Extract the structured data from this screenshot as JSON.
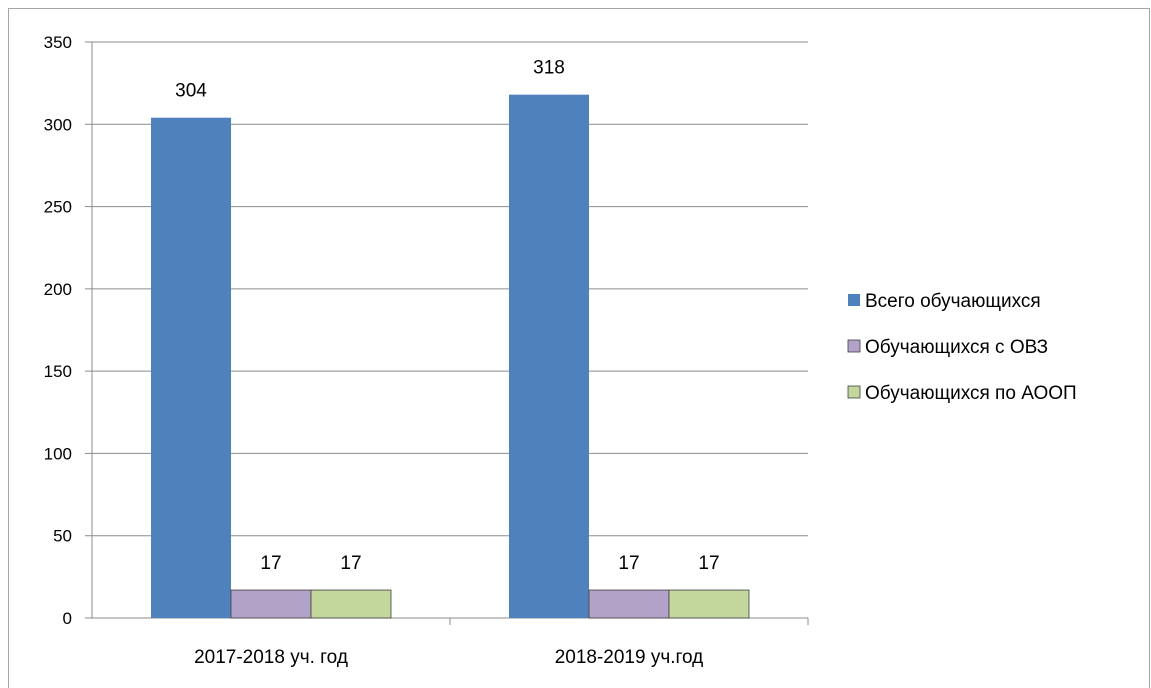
{
  "chart_data": {
    "type": "bar",
    "title": "",
    "xlabel": "",
    "ylabel": "",
    "categories": [
      "2017-2018 уч. год",
      "2018-2019 уч.год"
    ],
    "series": [
      {
        "name": "Всего обучающихся",
        "values": [
          304,
          318
        ],
        "color": "#4f81bd"
      },
      {
        "name": "Обучающихся с ОВЗ",
        "values": [
          17,
          17
        ],
        "color": "#b3a2c7"
      },
      {
        "name": "Обучающихся по АООП",
        "values": [
          17,
          17
        ],
        "color": "#c3d69b"
      }
    ],
    "ylim": [
      0,
      350
    ],
    "yticks": [
      0,
      50,
      100,
      150,
      200,
      250,
      300,
      350
    ],
    "grid": true,
    "legend_position": "right",
    "data_labels": true
  }
}
